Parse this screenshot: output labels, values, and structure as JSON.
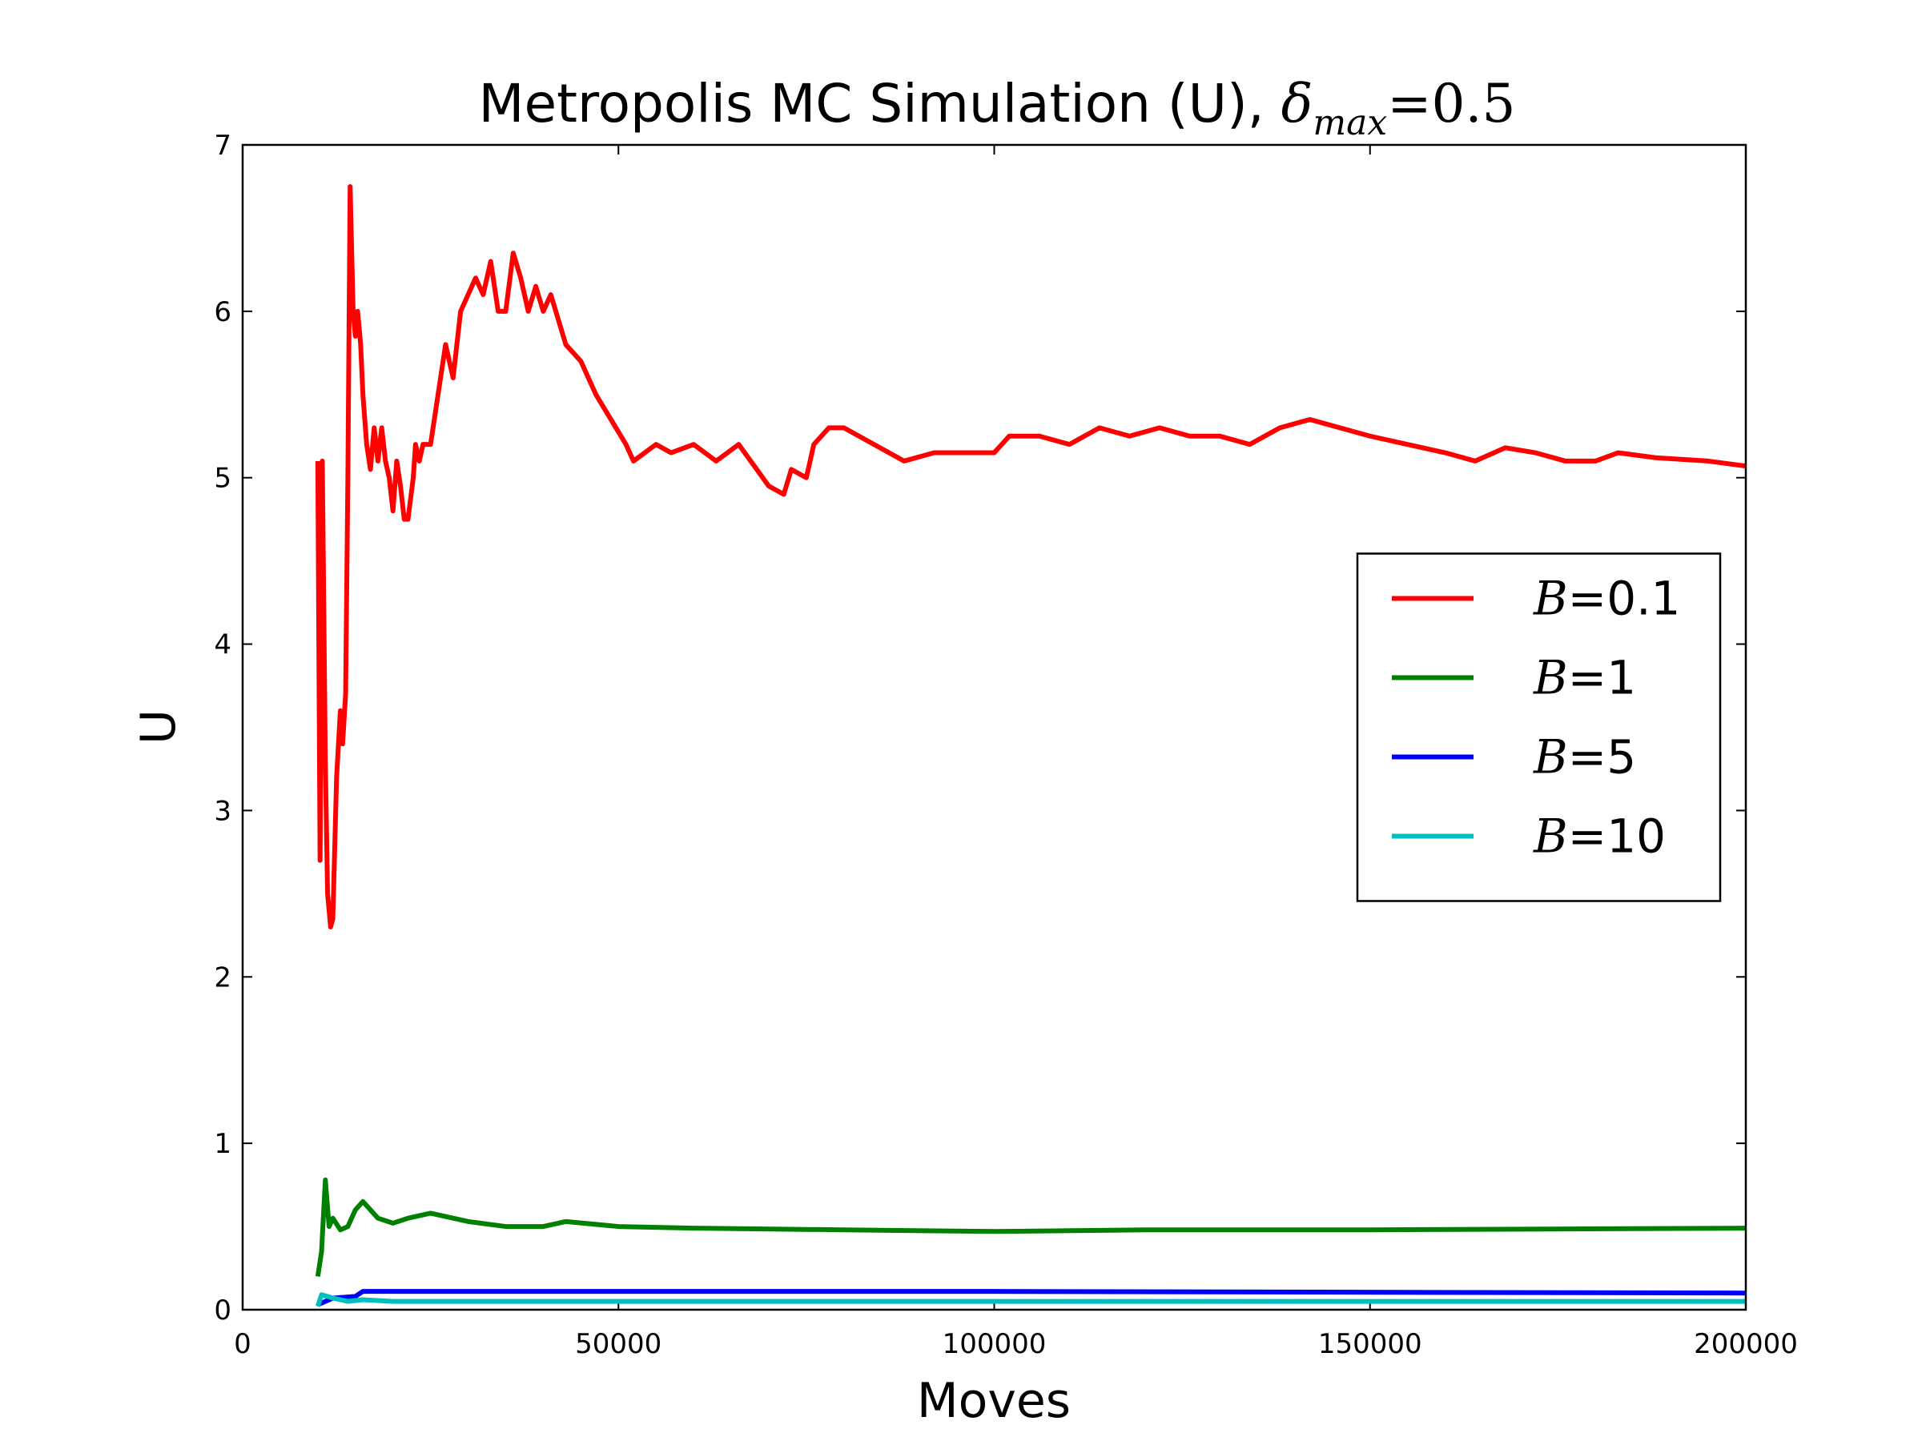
{
  "chart_data": {
    "type": "line",
    "title": "Metropolis MC Simulation (U),",
    "title_symbol": "δ",
    "title_subscript": "max",
    "title_value": "=0.5",
    "x_label": "Moves",
    "y_label": "U",
    "xlim": [
      0,
      200000
    ],
    "xticks": [
      0,
      50000,
      100000,
      150000,
      200000
    ],
    "ylim": [
      0,
      7
    ],
    "yticks": [
      0,
      1,
      2,
      3,
      4,
      5,
      6,
      7
    ],
    "grid": false,
    "legend": "center right",
    "series": [
      {
        "name": "B=0.1",
        "color": "#ff0000",
        "x": [
          10000,
          10300,
          10600,
          11000,
          11300,
          11700,
          12000,
          12500,
          13000,
          13300,
          13700,
          14000,
          14300,
          14700,
          15000,
          15300,
          15700,
          16000,
          16500,
          17000,
          17500,
          18000,
          18500,
          19000,
          19500,
          20000,
          20500,
          21000,
          21500,
          22000,
          22700,
          23000,
          23500,
          24000,
          25000,
          26000,
          27000,
          28000,
          29000,
          30000,
          31000,
          32000,
          33000,
          34000,
          35000,
          36000,
          37000,
          38000,
          39000,
          40000,
          41000,
          42000,
          43000,
          45000,
          47000,
          49000,
          51000,
          52000,
          55000,
          57000,
          60000,
          63000,
          66000,
          70000,
          72000,
          73000,
          75000,
          76000,
          78000,
          80000,
          84000,
          88000,
          92000,
          96000,
          100000,
          102000,
          106000,
          110000,
          114000,
          118000,
          122000,
          126000,
          130000,
          134000,
          138000,
          142000,
          146000,
          150000,
          155000,
          160000,
          164000,
          168000,
          172000,
          176000,
          180000,
          183000,
          188000,
          195000,
          200000
        ],
        "values": [
          5.1,
          2.7,
          5.1,
          3.3,
          2.5,
          2.3,
          2.35,
          3.2,
          3.6,
          3.4,
          3.7,
          5.0,
          6.75,
          6.0,
          5.85,
          6.0,
          5.8,
          5.5,
          5.2,
          5.05,
          5.3,
          5.1,
          5.3,
          5.1,
          5.0,
          4.8,
          5.1,
          4.95,
          4.75,
          4.75,
          5.0,
          5.2,
          5.1,
          5.2,
          5.2,
          5.5,
          5.8,
          5.6,
          6.0,
          6.1,
          6.2,
          6.1,
          6.3,
          6.0,
          6.0,
          6.35,
          6.2,
          6.0,
          6.15,
          6.0,
          6.1,
          5.95,
          5.8,
          5.7,
          5.5,
          5.35,
          5.2,
          5.1,
          5.2,
          5.15,
          5.2,
          5.1,
          5.2,
          4.95,
          4.9,
          5.05,
          5.0,
          5.2,
          5.3,
          5.3,
          5.2,
          5.1,
          5.15,
          5.15,
          5.15,
          5.25,
          5.25,
          5.2,
          5.3,
          5.25,
          5.3,
          5.25,
          5.25,
          5.2,
          5.3,
          5.35,
          5.3,
          5.25,
          5.2,
          5.15,
          5.1,
          5.18,
          5.15,
          5.1,
          5.1,
          5.15,
          5.12,
          5.1,
          5.07
        ]
      },
      {
        "name": "B=1",
        "color": "#008000",
        "x": [
          10000,
          10500,
          11000,
          11500,
          12000,
          13000,
          14000,
          15000,
          16000,
          18000,
          20000,
          22000,
          25000,
          30000,
          35000,
          40000,
          43000,
          50000,
          60000,
          80000,
          100000,
          120000,
          150000,
          200000
        ],
        "values": [
          0.2,
          0.35,
          0.78,
          0.5,
          0.55,
          0.48,
          0.5,
          0.6,
          0.65,
          0.55,
          0.52,
          0.55,
          0.58,
          0.53,
          0.5,
          0.5,
          0.53,
          0.5,
          0.49,
          0.48,
          0.47,
          0.48,
          0.48,
          0.49
        ]
      },
      {
        "name": "B=5",
        "color": "#0000ff",
        "x": [
          10000,
          12000,
          15000,
          16000,
          50000,
          100000,
          200000
        ],
        "values": [
          0.03,
          0.07,
          0.08,
          0.11,
          0.11,
          0.11,
          0.1
        ]
      },
      {
        "name": "B=10",
        "color": "#00bfbf",
        "x": [
          10000,
          10500,
          12000,
          14000,
          16000,
          20000,
          100000,
          200000
        ],
        "values": [
          0.02,
          0.09,
          0.07,
          0.05,
          0.06,
          0.05,
          0.05,
          0.05
        ]
      }
    ]
  }
}
